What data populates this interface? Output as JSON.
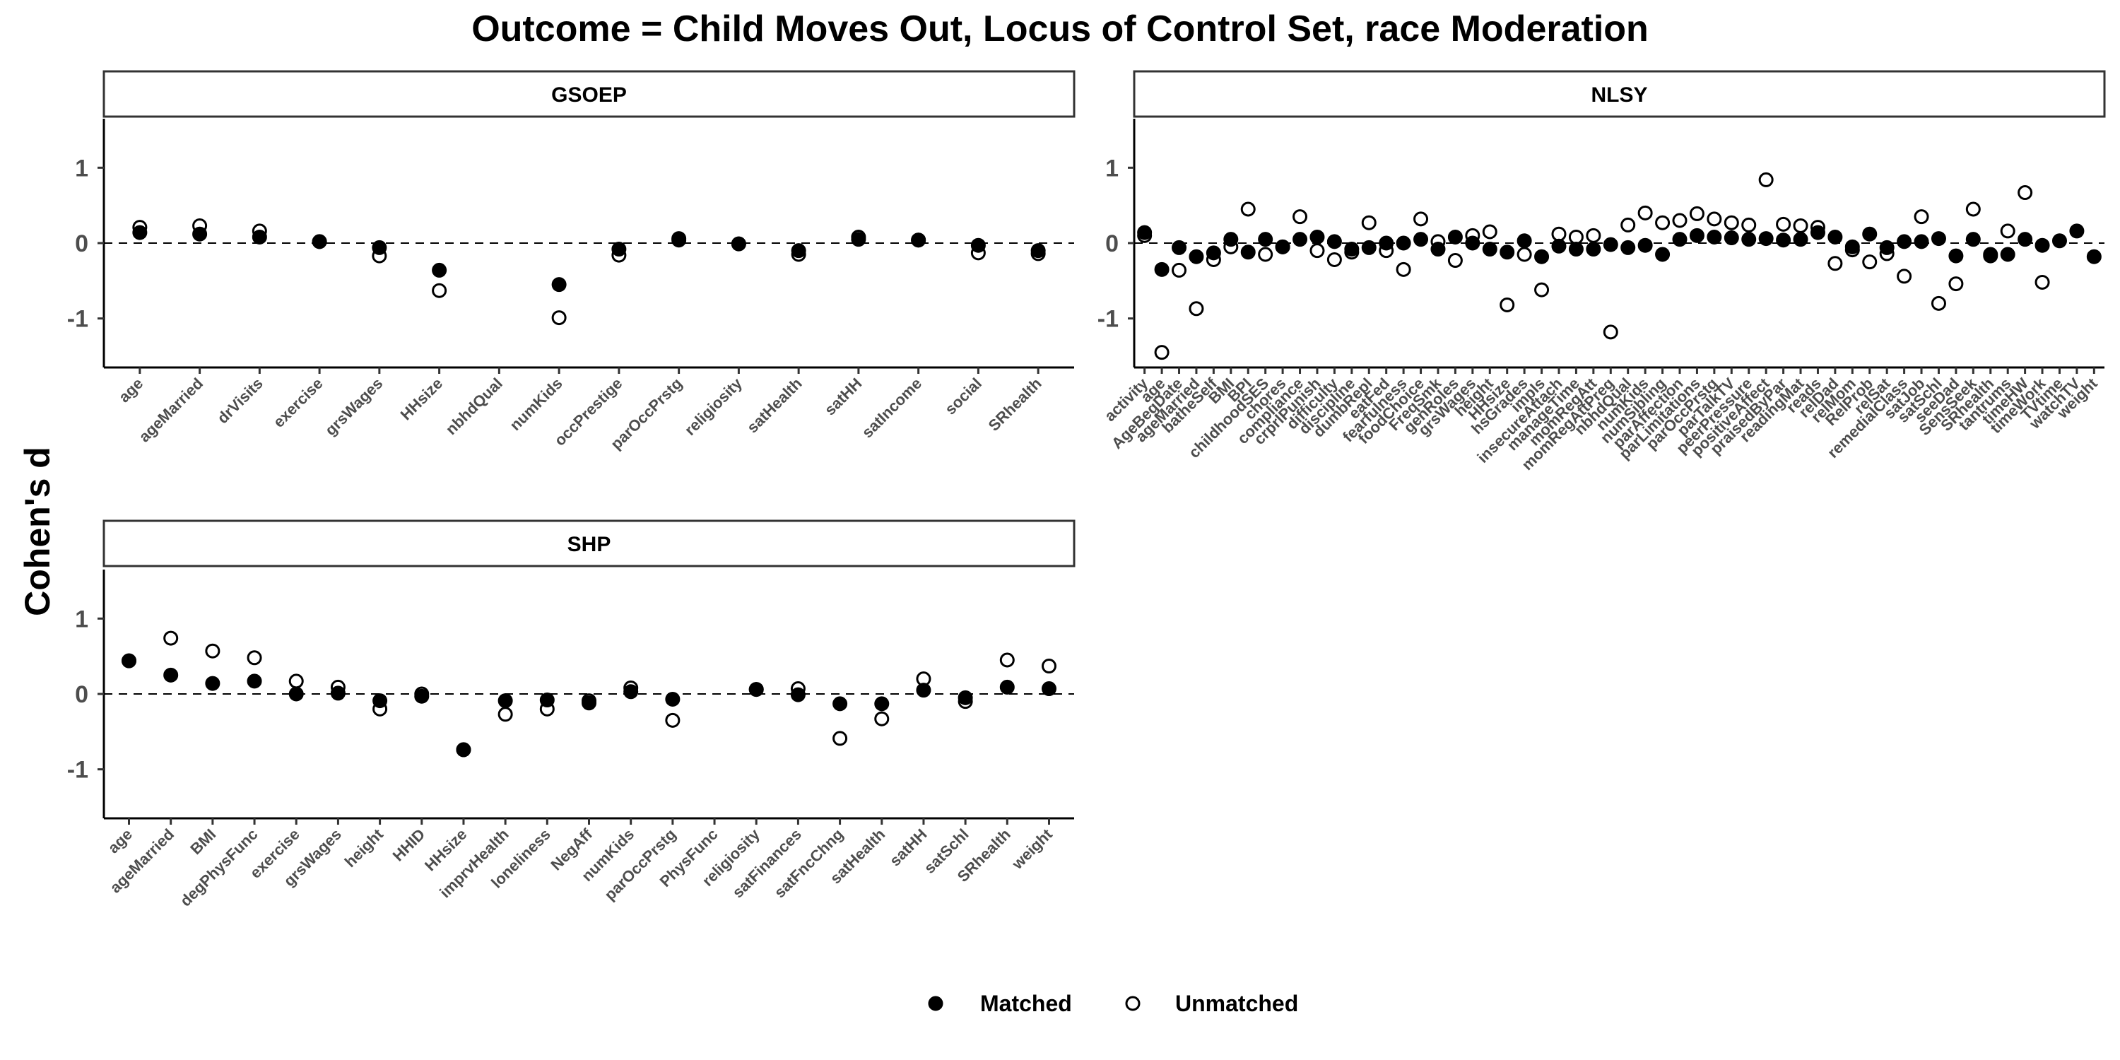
{
  "title": "Outcome = Child Moves Out, Locus of Control Set, race Moderation",
  "ylabel": "Cohen's d",
  "legend": {
    "position": "bottom",
    "entries": [
      "Matched",
      "Unmatched"
    ]
  },
  "colors": {
    "matched": "#000000",
    "unmatched": "#ffffff",
    "stroke": "#000000",
    "reference_line": "#000000",
    "axis": "#000000"
  },
  "chart_data": [
    {
      "type": "scatter",
      "panel": "GSOEP",
      "ylim": [
        -1.65,
        1.65
      ],
      "yticks": [
        -1,
        0,
        1
      ],
      "reference_line": 0,
      "categories": [
        "age",
        "ageMarried",
        "drVisits",
        "exercise",
        "grsWages",
        "HHsize",
        "nbhdQual",
        "numKids",
        "occPrestige",
        "parOccPrstg",
        "religiosity",
        "satHealth",
        "satHH",
        "satIncome",
        "social",
        "SRhealth"
      ],
      "series": [
        {
          "name": "Matched",
          "values": [
            0.14,
            0.12,
            0.08,
            0.02,
            -0.06,
            -0.36,
            null,
            -0.55,
            -0.08,
            0.04,
            -0.01,
            -0.1,
            0.05,
            0.04,
            -0.03,
            -0.1
          ]
        },
        {
          "name": "Unmatched",
          "values": [
            0.21,
            0.23,
            0.16,
            0.02,
            -0.17,
            -0.63,
            null,
            -0.99,
            -0.16,
            0.06,
            -0.01,
            -0.15,
            0.08,
            0.04,
            -0.13,
            -0.14
          ]
        }
      ]
    },
    {
      "type": "scatter",
      "panel": "NLSY",
      "ylim": [
        -1.65,
        1.65
      ],
      "yticks": [
        -1,
        0,
        1
      ],
      "reference_line": 0,
      "categories": [
        "activity",
        "age",
        "AgeBegDate",
        "ageMarried",
        "batheSelf",
        "BMI",
        "BPI",
        "childhoodSES",
        "chores",
        "compliance",
        "crprlPunish",
        "difficulty",
        "discipline",
        "dumbRepl",
        "eatFed",
        "fearfulness",
        "foodChoice",
        "FreqSmk",
        "genRoles",
        "grsWages",
        "height",
        "HHsize",
        "hsGrades",
        "impls",
        "insecureAttach",
        "manageTime",
        "momRegAtt",
        "momRegAttPreg",
        "nbhdQual",
        "numKids",
        "numSibling",
        "parAffection",
        "parLimitations",
        "parOccPrstg",
        "parTalkTV",
        "peerPressure",
        "positiveAffect",
        "praisedByPar",
        "readingMat",
        "reads",
        "relDad",
        "relMom",
        "RelProb",
        "relSat",
        "remedialClass",
        "satJob",
        "satSchl",
        "seeDad",
        "SensSeek",
        "SRhealth",
        "tantrums",
        "timeHW",
        "timeWork",
        "TVtime",
        "watchTV",
        "weight"
      ],
      "series": [
        {
          "name": "Matched",
          "values": [
            0.14,
            -0.35,
            -0.06,
            -0.18,
            -0.13,
            0.05,
            -0.12,
            0.05,
            -0.05,
            0.05,
            0.08,
            0.02,
            -0.08,
            -0.06,
            0.0,
            0.0,
            0.05,
            -0.08,
            0.08,
            0.0,
            -0.08,
            -0.12,
            0.03,
            -0.18,
            -0.04,
            -0.08,
            -0.08,
            -0.02,
            -0.06,
            -0.03,
            -0.15,
            0.05,
            0.1,
            0.08,
            0.07,
            0.05,
            0.06,
            0.04,
            0.05,
            0.14,
            0.08,
            -0.05,
            0.12,
            -0.06,
            0.02,
            0.02,
            0.06,
            -0.17,
            0.05,
            -0.15,
            -0.15,
            0.05,
            -0.03,
            0.03,
            0.16,
            -0.18
          ]
        },
        {
          "name": "Unmatched",
          "values": [
            0.1,
            -1.45,
            -0.36,
            -0.87,
            -0.22,
            -0.05,
            0.45,
            -0.15,
            -0.05,
            0.35,
            -0.1,
            -0.22,
            -0.12,
            0.27,
            -0.1,
            -0.35,
            0.32,
            0.02,
            -0.23,
            0.1,
            0.15,
            -0.82,
            -0.15,
            -0.62,
            0.12,
            0.08,
            0.1,
            -1.18,
            0.24,
            0.4,
            0.27,
            0.3,
            0.39,
            0.32,
            0.27,
            0.24,
            0.84,
            0.25,
            0.23,
            0.21,
            -0.27,
            -0.09,
            -0.25,
            -0.14,
            -0.44,
            0.35,
            -0.8,
            -0.54,
            0.45,
            -0.17,
            0.16,
            0.67,
            -0.52,
            null,
            null,
            null
          ]
        }
      ]
    },
    {
      "type": "scatter",
      "panel": "SHP",
      "ylim": [
        -1.65,
        1.65
      ],
      "yticks": [
        -1,
        0,
        1
      ],
      "reference_line": 0,
      "categories": [
        "age",
        "ageMarried",
        "BMI",
        "degPhysFunc",
        "exercise",
        "grsWages",
        "height",
        "HHID",
        "HHsize",
        "imprvHealth",
        "loneliness",
        "NegAff",
        "numKids",
        "parOccPrstg",
        "PhysFunc",
        "religiosity",
        "satFinances",
        "satFncChng",
        "satHealth",
        "satHH",
        "satSchl",
        "SRhealth",
        "weight"
      ],
      "series": [
        {
          "name": "Matched",
          "values": [
            0.44,
            0.25,
            0.14,
            0.17,
            0.0,
            0.01,
            -0.09,
            -0.03,
            -0.74,
            -0.09,
            -0.08,
            -0.12,
            0.03,
            -0.07,
            null,
            0.06,
            -0.01,
            -0.13,
            -0.13,
            0.05,
            -0.05,
            0.09,
            0.07
          ]
        },
        {
          "name": "Unmatched",
          "values": [
            0.44,
            0.74,
            0.57,
            0.48,
            0.17,
            0.09,
            -0.2,
            0.0,
            -0.74,
            -0.27,
            -0.2,
            -0.09,
            0.08,
            -0.35,
            null,
            0.06,
            0.07,
            -0.59,
            -0.33,
            0.2,
            -0.1,
            0.45,
            0.37
          ]
        }
      ]
    }
  ]
}
